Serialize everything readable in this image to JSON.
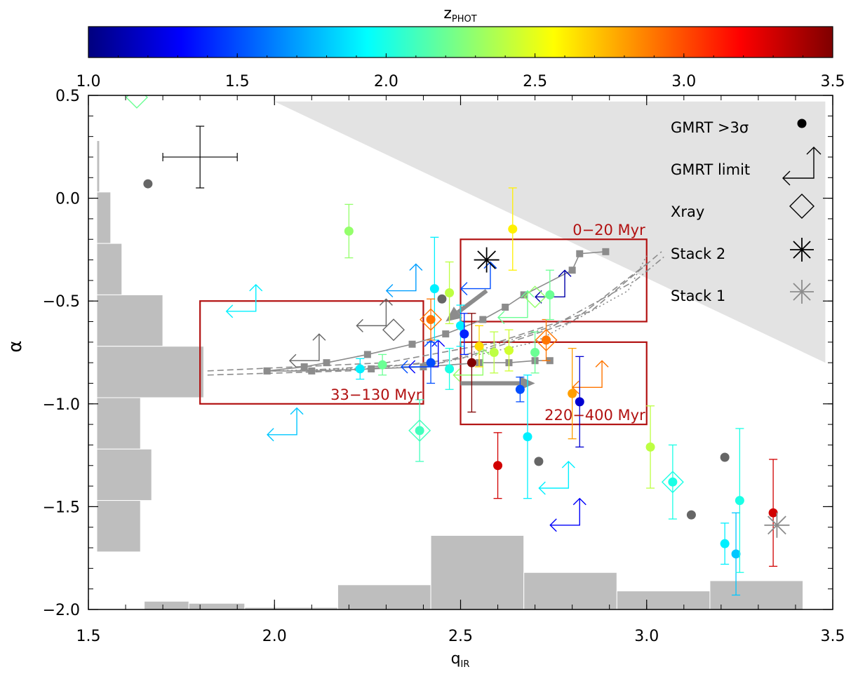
{
  "chart_data": {
    "type": "scatter",
    "title": "",
    "xlabel_main": "q",
    "xlabel_sub": "IR",
    "ylabel": "α",
    "xlim": [
      1.5,
      3.5
    ],
    "ylim": [
      -2.0,
      0.5
    ],
    "x_ticks": [
      "1.5",
      "2.0",
      "2.5",
      "3.0",
      "3.5"
    ],
    "y_ticks": [
      "0.5",
      "0.0",
      "−0.5",
      "−1.0",
      "−1.5",
      "−2.0"
    ],
    "x_tick_values": [
      1.5,
      2.0,
      2.5,
      3.0,
      3.5
    ],
    "y_tick_values": [
      0.5,
      0.0,
      -0.5,
      -1.0,
      -1.5,
      -2.0
    ],
    "colorbar": {
      "label_main": "z",
      "label_sub": "PHOT",
      "range": [
        1.0,
        3.5
      ],
      "ticks": [
        "1.0",
        "1.5",
        "2.0",
        "2.5",
        "3.0",
        "3.5"
      ],
      "tick_values": [
        1.0,
        1.5,
        2.0,
        2.5,
        3.0,
        3.5
      ]
    },
    "legend": {
      "placement": "top-right",
      "entries": [
        {
          "label": "GMRT >3σ",
          "symbol": "filled-circle"
        },
        {
          "label": "GMRT limit",
          "symbol": "limit-arrows"
        },
        {
          "label": "Xray",
          "symbol": "diamond"
        },
        {
          "label": "Stack 2",
          "symbol": "black-asterisk"
        },
        {
          "label": "Stack 1",
          "symbol": "grey-asterisk"
        }
      ]
    },
    "age_boxes": [
      {
        "label": "0−20 Myr",
        "x": [
          2.5,
          3.0
        ],
        "y": [
          -0.6,
          -0.2
        ]
      },
      {
        "label": "33−130 Myr",
        "x": [
          1.8,
          2.4
        ],
        "y": [
          -1.0,
          -0.5
        ]
      },
      {
        "label": "220−400 Myr",
        "x": [
          2.5,
          3.0
        ],
        "y": [
          -1.1,
          -0.7
        ]
      }
    ],
    "representative_error": {
      "x": 1.8,
      "y": 0.2,
      "xerr": 0.1,
      "yerr": 0.15
    },
    "detections": [
      {
        "x": 1.66,
        "y": 0.07,
        "z": null
      },
      {
        "x": 2.2,
        "y": -0.16,
        "z": 2.3,
        "yerr": 0.13
      },
      {
        "x": 2.43,
        "y": -0.44,
        "z": 1.9,
        "yerr": 0.25
      },
      {
        "x": 2.45,
        "y": -0.49,
        "z": null
      },
      {
        "x": 2.47,
        "y": -0.46,
        "z": 2.4,
        "yerr": 0.15
      },
      {
        "x": 2.42,
        "y": -0.59,
        "z": 2.9,
        "yerr": 0.1
      },
      {
        "x": 2.64,
        "y": -0.15,
        "z": 2.6,
        "yerr": 0.2
      },
      {
        "x": 2.5,
        "y": -0.62,
        "z": 1.9,
        "yerr": 0.1
      },
      {
        "x": 2.51,
        "y": -0.66,
        "z": 1.4,
        "yerr": 0.1
      },
      {
        "x": 2.55,
        "y": -0.72,
        "z": 2.65,
        "yerr": 0.1
      },
      {
        "x": 2.59,
        "y": -0.75,
        "z": 2.4,
        "yerr": 0.1
      },
      {
        "x": 2.63,
        "y": -0.74,
        "z": 2.45,
        "yerr": 0.1
      },
      {
        "x": 2.7,
        "y": -0.75,
        "z": 2.2,
        "yerr": 0.1
      },
      {
        "x": 2.73,
        "y": -0.69,
        "z": 2.9,
        "yerr": 0.1
      },
      {
        "x": 2.74,
        "y": -0.47,
        "z": 2.2,
        "yerr": 0.12
      },
      {
        "x": 2.53,
        "y": -0.8,
        "z": 3.5,
        "yerr": 0.24
      },
      {
        "x": 2.42,
        "y": -0.8,
        "z": 1.5,
        "yerr": 0.1
      },
      {
        "x": 2.47,
        "y": -0.83,
        "z": 2.0,
        "yerr": 0.1
      },
      {
        "x": 2.23,
        "y": -0.83,
        "z": 1.9,
        "yerr": 0.05
      },
      {
        "x": 2.29,
        "y": -0.81,
        "z": 2.2,
        "yerr": 0.05
      },
      {
        "x": 2.66,
        "y": -0.93,
        "z": 1.5,
        "yerr": 0.06
      },
      {
        "x": 2.8,
        "y": -0.95,
        "z": 2.8,
        "yerr": 0.22
      },
      {
        "x": 2.82,
        "y": -0.99,
        "z": 1.2,
        "yerr": 0.22
      },
      {
        "x": 2.39,
        "y": -1.13,
        "z": 2.1,
        "yerr": 0.15
      },
      {
        "x": 2.68,
        "y": -1.16,
        "z": 1.9,
        "yerr": 0.3
      },
      {
        "x": 2.6,
        "y": -1.3,
        "z": 3.3,
        "yerr": 0.16
      },
      {
        "x": 2.71,
        "y": -1.28,
        "z": null
      },
      {
        "x": 3.01,
        "y": -1.21,
        "z": 2.4,
        "yerr": 0.2
      },
      {
        "x": 3.07,
        "y": -1.38,
        "z": 2.0,
        "yerr": 0.18
      },
      {
        "x": 3.12,
        "y": -1.54,
        "z": null
      },
      {
        "x": 3.21,
        "y": -1.26,
        "z": null
      },
      {
        "x": 3.21,
        "y": -1.68,
        "z": 1.9,
        "yerr": 0.1
      },
      {
        "x": 3.24,
        "y": -1.73,
        "z": 1.8,
        "yerr": 0.2
      },
      {
        "x": 3.25,
        "y": -1.47,
        "z": 2.0,
        "yerr": 0.35
      },
      {
        "x": 3.34,
        "y": -1.53,
        "z": 3.3,
        "yerr": 0.26
      }
    ],
    "xray_diamonds": [
      {
        "x": 1.63,
        "y": 0.49,
        "z": 2.2
      },
      {
        "x": 2.42,
        "y": -0.59,
        "z": 2.9
      },
      {
        "x": 2.7,
        "y": -0.48,
        "z": 2.3
      },
      {
        "x": 2.73,
        "y": -0.69,
        "z": 2.9
      },
      {
        "x": 2.39,
        "y": -1.13,
        "z": 2.1
      },
      {
        "x": 3.07,
        "y": -1.38,
        "z": 2.0
      },
      {
        "x": 2.32,
        "y": -0.64,
        "z": null
      }
    ],
    "limits": [
      {
        "x": 1.95,
        "y": -0.55,
        "z": 1.9
      },
      {
        "x": 2.3,
        "y": -0.62,
        "z": null
      },
      {
        "x": 2.38,
        "y": -0.45,
        "z": 1.7
      },
      {
        "x": 2.12,
        "y": -0.79,
        "z": null
      },
      {
        "x": 2.06,
        "y": -1.15,
        "z": 1.8
      },
      {
        "x": 2.44,
        "y": -0.82,
        "z": 1.3
      },
      {
        "x": 2.58,
        "y": -0.44,
        "z": 1.5
      },
      {
        "x": 2.78,
        "y": -0.48,
        "z": 1.1
      },
      {
        "x": 2.68,
        "y": -0.58,
        "z": 2.2
      },
      {
        "x": 2.88,
        "y": -0.92,
        "z": 2.9
      },
      {
        "x": 2.56,
        "y": -0.86,
        "z": 2.3
      },
      {
        "x": 2.42,
        "y": -0.82,
        "z": 1.5
      },
      {
        "x": 2.79,
        "y": -1.41,
        "z": 1.9
      },
      {
        "x": 2.82,
        "y": -1.59,
        "z": 1.3
      }
    ],
    "stack_2": {
      "x": 2.57,
      "y": -0.3
    },
    "stack_1": {
      "x": 3.35,
      "y": -1.59
    },
    "model_tracks": [
      {
        "style": "solid",
        "points": [
          [
            1.98,
            -0.84
          ],
          [
            2.08,
            -0.82
          ],
          [
            2.14,
            -0.8
          ],
          [
            2.25,
            -0.76
          ],
          [
            2.37,
            -0.71
          ],
          [
            2.46,
            -0.66
          ],
          [
            2.56,
            -0.59
          ],
          [
            2.62,
            -0.53
          ],
          [
            2.67,
            -0.47
          ],
          [
            2.8,
            -0.35
          ],
          [
            2.82,
            -0.27
          ],
          [
            2.89,
            -0.26
          ]
        ]
      },
      {
        "style": "solid",
        "points": [
          [
            1.98,
            -0.84
          ],
          [
            2.1,
            -0.84
          ],
          [
            2.26,
            -0.83
          ],
          [
            2.4,
            -0.82
          ],
          [
            2.55,
            -0.8
          ],
          [
            2.63,
            -0.8
          ],
          [
            2.7,
            -0.79
          ],
          [
            2.74,
            -0.79
          ]
        ]
      },
      {
        "style": "dashed",
        "points": [
          [
            1.82,
            -0.86
          ],
          [
            2.2,
            -0.84
          ],
          [
            2.5,
            -0.78
          ],
          [
            2.8,
            -0.6
          ],
          [
            3.0,
            -0.32
          ]
        ]
      },
      {
        "style": "dashed",
        "points": [
          [
            1.82,
            -0.84
          ],
          [
            2.3,
            -0.8
          ],
          [
            2.6,
            -0.7
          ],
          [
            2.85,
            -0.55
          ],
          [
            3.04,
            -0.26
          ]
        ]
      },
      {
        "style": "dotted",
        "points": [
          [
            2.0,
            -0.84
          ],
          [
            2.4,
            -0.82
          ],
          [
            2.7,
            -0.7
          ],
          [
            2.95,
            -0.45
          ],
          [
            3.0,
            -0.28
          ]
        ]
      },
      {
        "style": "dashdot",
        "points": [
          [
            2.05,
            -0.84
          ],
          [
            2.45,
            -0.8
          ],
          [
            2.75,
            -0.62
          ],
          [
            2.97,
            -0.4
          ],
          [
            3.05,
            -0.28
          ]
        ]
      }
    ],
    "model_arrows": [
      {
        "from": [
          2.57,
          -0.45
        ],
        "to": [
          2.46,
          -0.6
        ]
      },
      {
        "from": [
          2.5,
          -0.9
        ],
        "to": [
          2.7,
          -0.9
        ]
      }
    ],
    "excluded_region": {
      "vertices": [
        [
          2.0,
          0.47
        ],
        [
          3.48,
          0.47
        ],
        [
          3.48,
          -0.8
        ]
      ]
    },
    "histogram_y": {
      "bins": [
        [
          0.28,
          0.03
        ],
        [
          0.03,
          -0.22
        ],
        [
          -0.22,
          -0.47
        ],
        [
          -0.47,
          -0.72
        ],
        [
          -0.72,
          -0.97
        ],
        [
          -0.97,
          -1.22
        ],
        [
          -1.22,
          -1.47
        ],
        [
          -1.47,
          -1.72
        ]
      ],
      "levels": [
        1.53,
        1.56,
        1.59,
        1.7,
        1.81,
        1.64,
        1.67,
        1.64
      ]
    },
    "histogram_x": {
      "bins": [
        [
          1.65,
          1.77
        ],
        [
          1.77,
          1.92
        ],
        [
          1.92,
          2.17
        ],
        [
          2.17,
          2.42
        ],
        [
          2.42,
          2.67
        ],
        [
          2.67,
          2.92
        ],
        [
          2.92,
          3.17
        ],
        [
          3.17,
          3.42
        ]
      ],
      "levels": [
        -1.96,
        -1.97,
        -1.99,
        -1.88,
        -1.64,
        -1.82,
        -1.91,
        -1.86
      ]
    }
  }
}
